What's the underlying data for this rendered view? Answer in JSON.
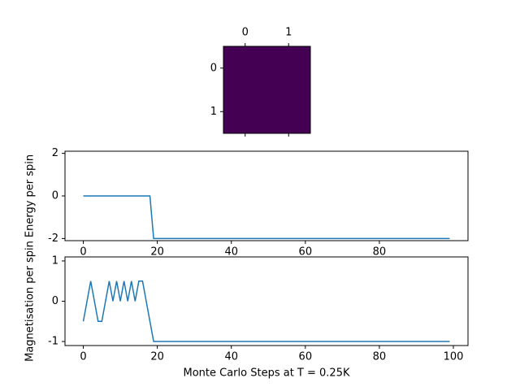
{
  "chart_data": [
    {
      "type": "heatmap",
      "z": [
        [
          -1,
          -1
        ],
        [
          -1,
          -1
        ]
      ],
      "color": "#440154",
      "xlim": [
        -0.5,
        1.5
      ],
      "ylim": [
        1.5,
        -0.5
      ],
      "xticks": [
        0,
        1
      ],
      "yticks": [
        0,
        1
      ]
    },
    {
      "type": "line",
      "ylabel": "Energy per spin",
      "x": [
        0,
        1,
        2,
        3,
        4,
        5,
        6,
        7,
        8,
        9,
        10,
        11,
        12,
        13,
        14,
        15,
        16,
        17,
        18,
        19,
        20,
        21,
        22,
        23,
        24,
        25,
        26,
        27,
        28,
        29,
        30,
        31,
        32,
        33,
        34,
        35,
        36,
        37,
        38,
        39,
        40,
        41,
        42,
        43,
        44,
        45,
        46,
        47,
        48,
        49,
        50,
        51,
        52,
        53,
        54,
        55,
        56,
        57,
        58,
        59,
        60,
        61,
        62,
        63,
        64,
        65,
        66,
        67,
        68,
        69,
        70,
        71,
        72,
        73,
        74,
        75,
        76,
        77,
        78,
        79,
        80,
        81,
        82,
        83,
        84,
        85,
        86,
        87,
        88,
        89,
        90,
        91,
        92,
        93,
        94,
        95,
        96,
        97,
        98,
        99
      ],
      "series": [
        {
          "color": "#1f77b4",
          "values": [
            0,
            0,
            0,
            0,
            0,
            0,
            0,
            0,
            0,
            0,
            0,
            0,
            0,
            0,
            0,
            0,
            0,
            0,
            0,
            -2,
            -2,
            -2,
            -2,
            -2,
            -2,
            -2,
            -2,
            -2,
            -2,
            -2,
            -2,
            -2,
            -2,
            -2,
            -2,
            -2,
            -2,
            -2,
            -2,
            -2,
            -2,
            -2,
            -2,
            -2,
            -2,
            -2,
            -2,
            -2,
            -2,
            -2,
            -2,
            -2,
            -2,
            -2,
            -2,
            -2,
            -2,
            -2,
            -2,
            -2,
            -2,
            -2,
            -2,
            -2,
            -2,
            -2,
            -2,
            -2,
            -2,
            -2,
            -2,
            -2,
            -2,
            -2,
            -2,
            -2,
            -2,
            -2,
            -2,
            -2,
            -2,
            -2,
            -2,
            -2,
            -2,
            -2,
            -2,
            -2,
            -2,
            -2,
            -2,
            -2,
            -2,
            -2,
            -2,
            -2,
            -2,
            -2,
            -2,
            -2
          ]
        }
      ],
      "xlim": [
        -4.95,
        103.95
      ],
      "xticks": [
        0,
        20,
        40,
        60,
        80
      ],
      "ylim": [
        -2.1,
        2.1
      ],
      "yticks": [
        -2,
        0,
        2
      ]
    },
    {
      "type": "line",
      "ylabel": "Magnetisation per spin",
      "xlabel": "Monte Carlo Steps at T = 0.25K",
      "x": [
        0,
        1,
        2,
        3,
        4,
        5,
        6,
        7,
        8,
        9,
        10,
        11,
        12,
        13,
        14,
        15,
        16,
        17,
        18,
        19,
        20,
        21,
        22,
        23,
        24,
        25,
        26,
        27,
        28,
        29,
        30,
        31,
        32,
        33,
        34,
        35,
        36,
        37,
        38,
        39,
        40,
        41,
        42,
        43,
        44,
        45,
        46,
        47,
        48,
        49,
        50,
        51,
        52,
        53,
        54,
        55,
        56,
        57,
        58,
        59,
        60,
        61,
        62,
        63,
        64,
        65,
        66,
        67,
        68,
        69,
        70,
        71,
        72,
        73,
        74,
        75,
        76,
        77,
        78,
        79,
        80,
        81,
        82,
        83,
        84,
        85,
        86,
        87,
        88,
        89,
        90,
        91,
        92,
        93,
        94,
        95,
        96,
        97,
        98,
        99
      ],
      "series": [
        {
          "color": "#1f77b4",
          "values": [
            -0.5,
            0,
            0.5,
            0,
            -0.5,
            -0.5,
            0,
            0.5,
            0,
            0.5,
            0,
            0.5,
            0,
            0.5,
            0,
            0.5,
            0.5,
            0,
            -0.5,
            -1,
            -1,
            -1,
            -1,
            -1,
            -1,
            -1,
            -1,
            -1,
            -1,
            -1,
            -1,
            -1,
            -1,
            -1,
            -1,
            -1,
            -1,
            -1,
            -1,
            -1,
            -1,
            -1,
            -1,
            -1,
            -1,
            -1,
            -1,
            -1,
            -1,
            -1,
            -1,
            -1,
            -1,
            -1,
            -1,
            -1,
            -1,
            -1,
            -1,
            -1,
            -1,
            -1,
            -1,
            -1,
            -1,
            -1,
            -1,
            -1,
            -1,
            -1,
            -1,
            -1,
            -1,
            -1,
            -1,
            -1,
            -1,
            -1,
            -1,
            -1,
            -1,
            -1,
            -1,
            -1,
            -1,
            -1,
            -1,
            -1,
            -1,
            -1,
            -1,
            -1,
            -1,
            -1,
            -1,
            -1,
            -1,
            -1,
            -1,
            -1
          ]
        }
      ],
      "xlim": [
        -4.95,
        103.95
      ],
      "xticks": [
        0,
        20,
        40,
        60,
        80,
        100
      ],
      "ylim": [
        -1.1,
        1.1
      ],
      "yticks": [
        -1,
        0,
        1
      ]
    }
  ]
}
